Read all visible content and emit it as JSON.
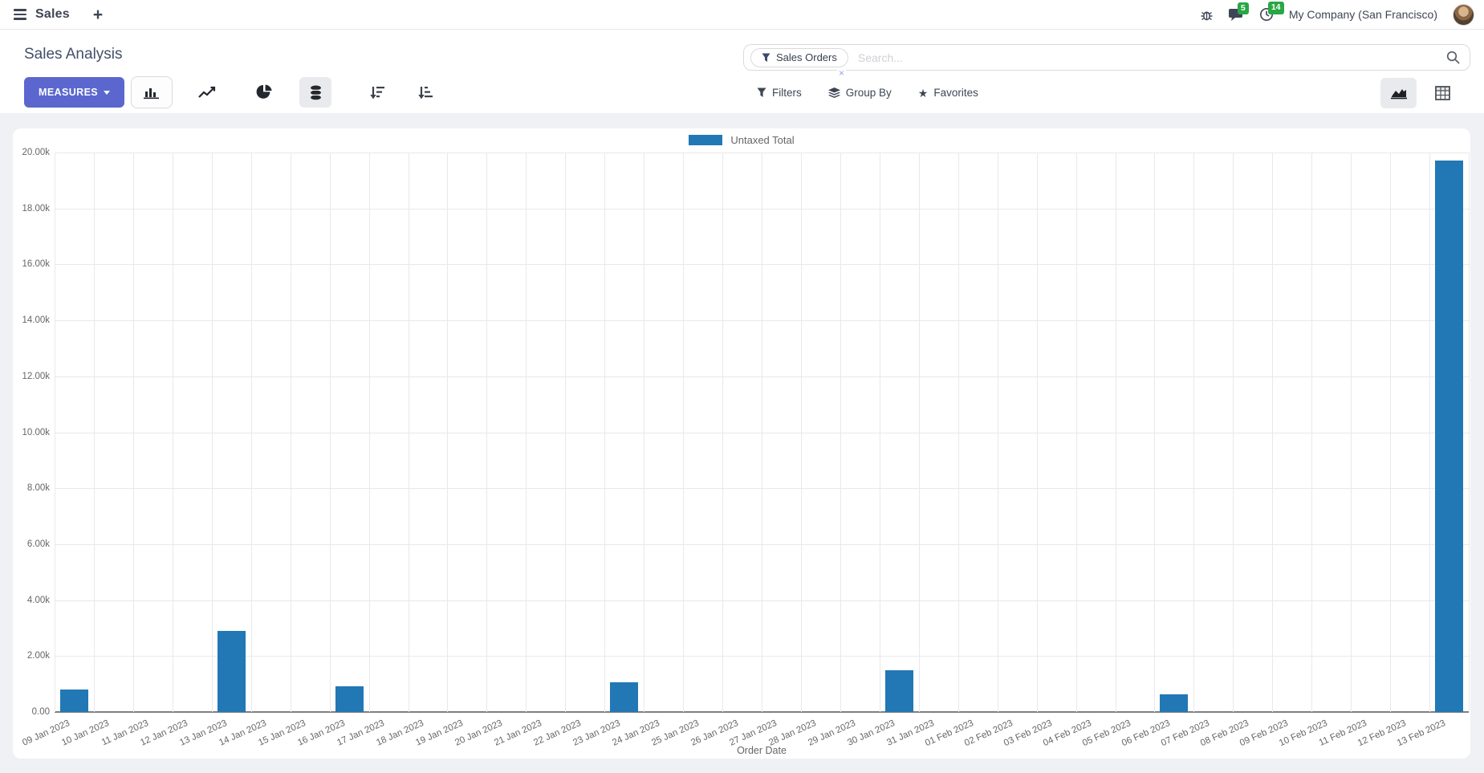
{
  "navbar": {
    "app_name": "Sales",
    "plus": "+",
    "message_badge": "5",
    "activity_badge": "14",
    "company": "My Company (San Francisco)"
  },
  "control_panel": {
    "title": "Sales Analysis",
    "measures_label": "MEASURES",
    "filters_label": "Filters",
    "group_by_label": "Group By",
    "favorites_label": "Favorites",
    "search": {
      "facet_label": "Sales Orders",
      "placeholder": "Search...",
      "remove_glyph": "×"
    }
  },
  "colors": {
    "primary_button": "#5b67ce",
    "bar": "#2178b5",
    "badge_green": "#28a745",
    "page_background": "#f0f1f5"
  },
  "chart_data": {
    "type": "bar",
    "title": "",
    "xlabel": "Order Date",
    "ylabel": "",
    "ylim": [
      0,
      20000
    ],
    "ytick_step": 2000,
    "ytick_labels": [
      "0.00",
      "2.00k",
      "4.00k",
      "6.00k",
      "8.00k",
      "10.00k",
      "12.00k",
      "14.00k",
      "16.00k",
      "18.00k",
      "20.00k"
    ],
    "grid": true,
    "legend_position": "top",
    "categories": [
      "09 Jan 2023",
      "10 Jan 2023",
      "11 Jan 2023",
      "12 Jan 2023",
      "13 Jan 2023",
      "14 Jan 2023",
      "15 Jan 2023",
      "16 Jan 2023",
      "17 Jan 2023",
      "18 Jan 2023",
      "19 Jan 2023",
      "20 Jan 2023",
      "21 Jan 2023",
      "22 Jan 2023",
      "23 Jan 2023",
      "24 Jan 2023",
      "25 Jan 2023",
      "26 Jan 2023",
      "27 Jan 2023",
      "28 Jan 2023",
      "29 Jan 2023",
      "30 Jan 2023",
      "31 Jan 2023",
      "01 Feb 2023",
      "02 Feb 2023",
      "03 Feb 2023",
      "04 Feb 2023",
      "05 Feb 2023",
      "06 Feb 2023",
      "07 Feb 2023",
      "08 Feb 2023",
      "09 Feb 2023",
      "10 Feb 2023",
      "11 Feb 2023",
      "12 Feb 2023",
      "13 Feb 2023"
    ],
    "series": [
      {
        "name": "Untaxed Total",
        "color": "#2178b5",
        "values": [
          810,
          0,
          0,
          0,
          2900,
          0,
          0,
          930,
          0,
          0,
          0,
          0,
          0,
          0,
          1050,
          0,
          0,
          0,
          0,
          0,
          0,
          1500,
          0,
          0,
          0,
          0,
          0,
          0,
          630,
          0,
          0,
          0,
          0,
          0,
          0,
          19700
        ]
      }
    ]
  }
}
